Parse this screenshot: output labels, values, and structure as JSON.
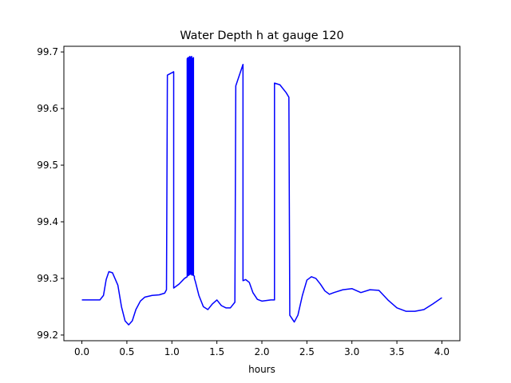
{
  "chart_data": {
    "type": "line",
    "title": "Water Depth h at gauge 120",
    "xlabel": "hours",
    "ylabel": "",
    "xlim": [
      -0.2,
      4.2
    ],
    "ylim": [
      99.19,
      99.71
    ],
    "x_ticks": [
      0.0,
      0.5,
      1.0,
      1.5,
      2.0,
      2.5,
      3.0,
      3.5,
      4.0
    ],
    "x_tick_labels": [
      "0.0",
      "0.5",
      "1.0",
      "1.5",
      "2.0",
      "2.5",
      "3.0",
      "3.5",
      "4.0"
    ],
    "y_ticks": [
      99.2,
      99.3,
      99.4,
      99.5,
      99.6,
      99.7
    ],
    "y_tick_labels": [
      "99.2",
      "99.3",
      "99.4",
      "99.5",
      "99.6",
      "99.7"
    ],
    "grid": false,
    "legend": "none",
    "series": [
      {
        "color": "#0000ff",
        "x": [
          0.0,
          0.1,
          0.2,
          0.24,
          0.27,
          0.3,
          0.34,
          0.4,
          0.44,
          0.48,
          0.52,
          0.56,
          0.6,
          0.65,
          0.7,
          0.78,
          0.86,
          0.92,
          0.94,
          0.95,
          1.02,
          1.02,
          1.08,
          1.14,
          1.17,
          1.17,
          1.18,
          1.18,
          1.19,
          1.19,
          1.2,
          1.2,
          1.21,
          1.21,
          1.22,
          1.22,
          1.23,
          1.23,
          1.24,
          1.24,
          1.25,
          1.25,
          1.26,
          1.3,
          1.35,
          1.4,
          1.45,
          1.5,
          1.55,
          1.6,
          1.65,
          1.7,
          1.71,
          1.79,
          1.79,
          1.82,
          1.86,
          1.9,
          1.95,
          2.0,
          2.05,
          2.1,
          2.14,
          2.14,
          2.2,
          2.27,
          2.3,
          2.31,
          2.36,
          2.4,
          2.45,
          2.5,
          2.55,
          2.6,
          2.65,
          2.7,
          2.75,
          2.8,
          2.9,
          3.0,
          3.1,
          3.2,
          3.3,
          3.4,
          3.5,
          3.6,
          3.7,
          3.8,
          3.9,
          4.0
        ],
        "y": [
          99.262,
          99.262,
          99.262,
          99.27,
          99.298,
          99.312,
          99.31,
          99.288,
          99.25,
          99.225,
          99.218,
          99.225,
          99.245,
          99.26,
          99.267,
          99.27,
          99.271,
          99.274,
          99.28,
          99.659,
          99.665,
          99.283,
          99.29,
          99.3,
          99.303,
          99.688,
          99.69,
          99.305,
          99.306,
          99.69,
          99.692,
          99.307,
          99.308,
          99.69,
          99.692,
          99.306,
          99.306,
          99.688,
          99.69,
          99.305,
          99.304,
          99.3,
          99.295,
          99.27,
          99.25,
          99.245,
          99.255,
          99.262,
          99.252,
          99.248,
          99.248,
          99.258,
          99.64,
          99.678,
          99.296,
          99.298,
          99.293,
          99.275,
          99.263,
          99.26,
          99.261,
          99.262,
          99.262,
          99.645,
          99.642,
          99.628,
          99.62,
          99.235,
          99.223,
          99.235,
          99.27,
          99.297,
          99.303,
          99.3,
          99.29,
          99.278,
          99.272,
          99.275,
          99.28,
          99.282,
          99.275,
          99.28,
          99.279,
          99.262,
          99.248,
          99.242,
          99.242,
          99.245,
          99.255,
          99.266
        ]
      }
    ]
  }
}
